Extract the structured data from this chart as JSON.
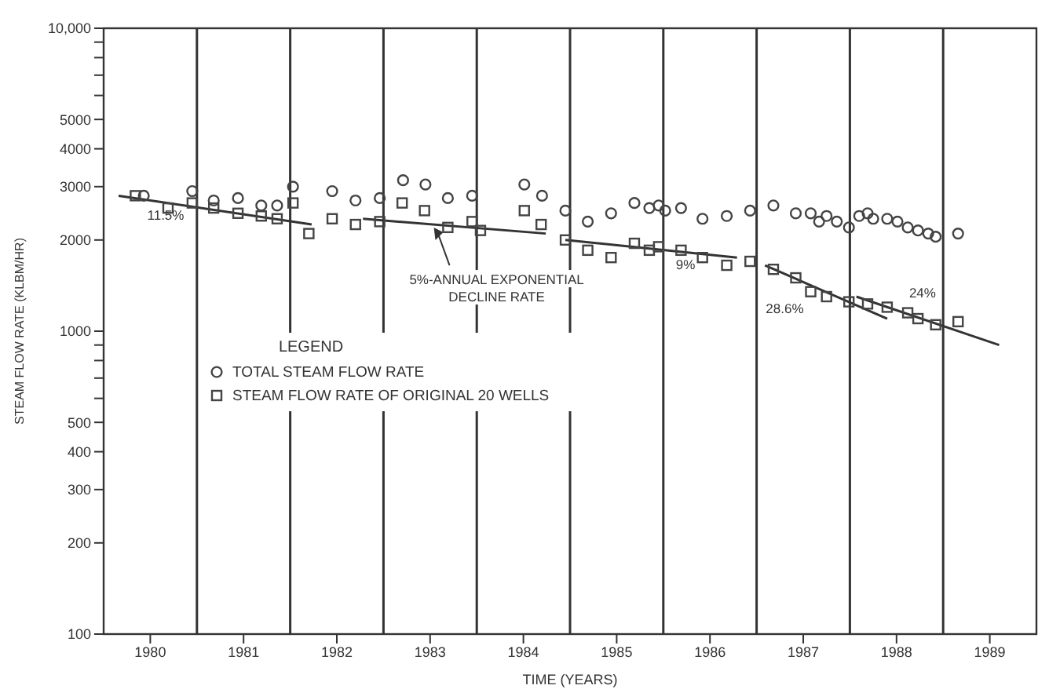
{
  "chart_data": {
    "type": "scatter",
    "xlabel": "TIME (YEARS)",
    "ylabel": "STEAM FLOW RATE (KLBM/HR)",
    "legend_title": "LEGEND",
    "legend": "bottom left",
    "log": "y",
    "grid": false,
    "xlim": [
      1980,
      1990
    ],
    "xticks": [
      {
        "value": 1980.5,
        "label": "1980"
      },
      {
        "value": 1981.5,
        "label": "1981"
      },
      {
        "value": 1982.5,
        "label": "1982"
      },
      {
        "value": 1983.5,
        "label": "1983"
      },
      {
        "value": 1984.5,
        "label": "1984"
      },
      {
        "value": 1985.5,
        "label": "1985"
      },
      {
        "value": 1986.5,
        "label": "1986"
      },
      {
        "value": 1987.5,
        "label": "1987"
      },
      {
        "value": 1988.5,
        "label": "1988"
      },
      {
        "value": 1989.5,
        "label": "1989"
      }
    ],
    "ylim": [
      100,
      10000
    ],
    "yticks": [
      100,
      200,
      300,
      400,
      500,
      {
        "value": 600,
        "label": null
      },
      {
        "value": 700,
        "label": null
      },
      {
        "value": 800,
        "label": null
      },
      {
        "value": 900,
        "label": null
      },
      1000,
      2000,
      3000,
      4000,
      5000,
      {
        "value": 6000,
        "label": null
      },
      {
        "value": 7000,
        "label": null
      },
      {
        "value": 8000,
        "label": null
      },
      {
        "value": 9000,
        "label": null
      },
      {
        "value": 10000,
        "label": "10,000"
      }
    ],
    "ref_lines": [
      {
        "axis": "x",
        "value": 1981,
        "color": "#333333"
      },
      {
        "axis": "x",
        "value": 1982,
        "color": "#333333"
      },
      {
        "axis": "x",
        "value": 1983,
        "color": "#333333"
      },
      {
        "axis": "x",
        "value": 1984,
        "color": "#333333"
      },
      {
        "axis": "x",
        "value": 1985,
        "color": "#333333"
      },
      {
        "axis": "x",
        "value": 1986,
        "color": "#333333"
      },
      {
        "axis": "x",
        "value": 1987,
        "color": "#333333"
      },
      {
        "axis": "x",
        "value": 1988,
        "color": "#333333"
      },
      {
        "axis": "x",
        "value": 1989,
        "color": "#333333"
      }
    ],
    "annotations": [
      {
        "text": "11.5%",
        "x": 1980.4,
        "y": 2750
      },
      {
        "text": "5%-ANNUAL EXPONENTIAL DECLINE RATE",
        "x": 1983.54,
        "y": 2250
      },
      {
        "text": "9%",
        "x": 1986.0,
        "y": 1850
      },
      {
        "text": "28.6%",
        "x": 1987.2,
        "y": 1600
      },
      {
        "text": "24%",
        "x": 1988.4,
        "y": 1200
      }
    ],
    "series": [
      {
        "name": "TOTAL STEAM FLOW RATE",
        "marker": "circle",
        "color": "#444444",
        "x": [
          1980.43,
          1980.95,
          1981.18,
          1981.44,
          1981.69,
          1981.86,
          1982.03,
          1982.45,
          1982.7,
          1982.96,
          1983.21,
          1983.45,
          1983.69,
          1983.95,
          1984.51,
          1984.7,
          1984.95,
          1985.19,
          1985.44,
          1985.69,
          1985.85,
          1985.95,
          1986.02,
          1986.19,
          1986.42,
          1986.68,
          1986.93,
          1987.18,
          1987.42,
          1987.58,
          1987.67,
          1987.75,
          1987.86,
          1987.99,
          1988.1,
          1988.19,
          1988.25,
          1988.4,
          1988.51,
          1988.62,
          1988.73,
          1988.84,
          1988.92,
          1989.16
        ],
        "values": [
          2800,
          2900,
          2700,
          2750,
          2600,
          2600,
          3000,
          2900,
          2700,
          2750,
          3150,
          3050,
          2750,
          2800,
          3050,
          2800,
          2500,
          2300,
          2450,
          2650,
          2550,
          2600,
          2500,
          2550,
          2350,
          2400,
          2500,
          2600,
          2450,
          2450,
          2300,
          2400,
          2300,
          2200,
          2400,
          2450,
          2350,
          2350,
          2300,
          2200,
          2150,
          2100,
          2050,
          2100
        ]
      },
      {
        "name": "STEAM FLOW RATE OF ORIGINAL 20 WELLS",
        "marker": "square",
        "color": "#444444",
        "x": [
          1980.34,
          1980.69,
          1980.95,
          1981.18,
          1981.44,
          1981.69,
          1981.86,
          1982.03,
          1982.2,
          1982.45,
          1982.7,
          1982.96,
          1983.2,
          1983.44,
          1983.69,
          1983.95,
          1984.04,
          1984.51,
          1984.69,
          1984.95,
          1985.19,
          1985.44,
          1985.69,
          1985.85,
          1985.95,
          1986.19,
          1986.42,
          1986.68,
          1986.93,
          1987.18,
          1987.42,
          1987.58,
          1987.75,
          1987.99,
          1988.19,
          1988.4,
          1988.62,
          1988.73,
          1988.92,
          1989.16
        ],
        "values": [
          2800,
          2550,
          2650,
          2550,
          2450,
          2400,
          2350,
          2650,
          2100,
          2350,
          2250,
          2300,
          2650,
          2500,
          2200,
          2300,
          2150,
          2500,
          2250,
          2000,
          1850,
          1750,
          1950,
          1850,
          1900,
          1850,
          1750,
          1650,
          1700,
          1600,
          1500,
          1350,
          1300,
          1250,
          1230,
          1200,
          1150,
          1100,
          1050,
          1075
        ]
      },
      {
        "type": "line",
        "color": "#333333",
        "x": [
          1980.16,
          1982.23
        ],
        "values": [
          2800,
          2250
        ]
      },
      {
        "type": "line",
        "color": "#333333",
        "x": [
          1982.78,
          1984.74
        ],
        "values": [
          2350,
          2100
        ]
      },
      {
        "type": "line",
        "color": "#333333",
        "x": [
          1984.95,
          1986.79
        ],
        "values": [
          2000,
          1750
        ]
      },
      {
        "type": "line",
        "color": "#333333",
        "x": [
          1987.09,
          1988.4
        ],
        "values": [
          1650,
          1100
        ]
      },
      {
        "type": "line",
        "color": "#333333",
        "x": [
          1988.07,
          1989.6
        ],
        "values": [
          1300,
          900
        ]
      }
    ]
  }
}
